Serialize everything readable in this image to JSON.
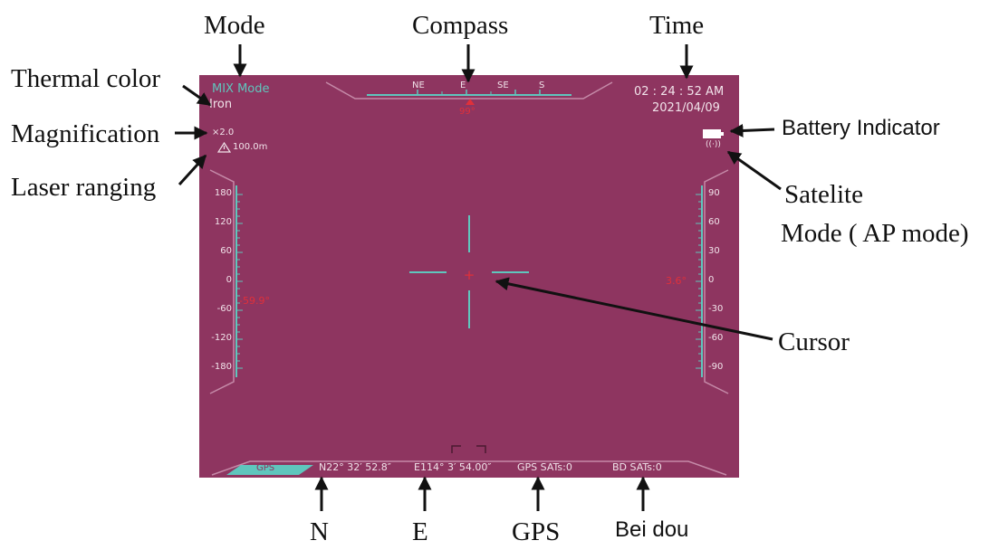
{
  "callouts": {
    "mode": "Mode",
    "compass": "Compass",
    "time": "Time",
    "thermal_color": "Thermal color",
    "magnification": "Magnification",
    "laser_ranging": "Laser ranging",
    "battery": "Battery Indicator",
    "satellite": "Satelite",
    "ap_mode": "Mode ( AP mode)",
    "cursor": "Cursor",
    "n": "N",
    "e": "E",
    "gps": "GPS",
    "bei_dou": "Bei dou"
  },
  "hud": {
    "mode": "MIX Mode",
    "palette": "Iron",
    "zoom": "×2.0",
    "range": "100.0m",
    "range_icon": "laser-range-icon",
    "compass_labels": [
      "NE",
      "E",
      "SE",
      "S"
    ],
    "heading": "99°",
    "time": "02 : 24 : 52 AM",
    "date": "2021/04/09",
    "left_scale": [
      "180",
      "120",
      "60",
      "0",
      "-60",
      "-120",
      "-180"
    ],
    "left_readout": "-59.9°",
    "right_scale": [
      "90",
      "60",
      "30",
      "0",
      "-30",
      "-60",
      "-90"
    ],
    "right_readout": "3.6°",
    "gps_tab": "GPS",
    "latitude": "N22° 32′ 52.8″",
    "longitude": "E114° 3′ 54.00″",
    "gps_sats": "GPS SATs:0",
    "bd_sats": "BD SATs:0",
    "battery_icon": "battery-icon",
    "satellite_icon": "satellite-icon"
  },
  "colors": {
    "screen_bg": "#8e3560",
    "accent": "#5fc6bd",
    "marker": "#e0303a"
  }
}
